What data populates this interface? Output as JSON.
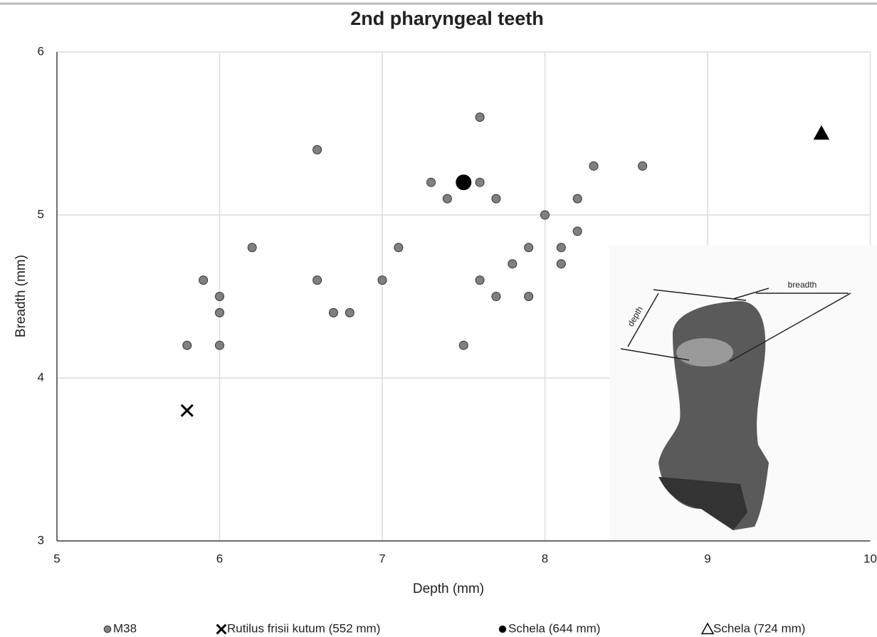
{
  "chart_data": {
    "type": "scatter",
    "title": "2nd pharyngeal teeth",
    "x_label": "Depth (mm)",
    "y_label": "Breadth (mm)",
    "xlim": [
      5,
      10
    ],
    "ylim": [
      3,
      6
    ],
    "xticks": [
      5,
      6,
      7,
      8,
      9,
      10
    ],
    "yticks": [
      3,
      4,
      5,
      6
    ],
    "grid": true,
    "legend": "bottom",
    "annotations": [
      "depth",
      "breadth"
    ],
    "series": [
      {
        "name": "M38",
        "color": "#808080",
        "marker": "circle",
        "x": [
          5.8,
          5.9,
          6,
          6,
          6,
          6.2,
          6.6,
          6.6,
          6.7,
          6.8,
          7,
          7.1,
          7.3,
          7.4,
          7.5,
          7.6,
          7.6,
          7.6,
          7.7,
          7.7,
          7.8,
          7.9,
          7.9,
          8,
          8.1,
          8.1,
          8.2,
          8.2,
          8.3,
          8.6
        ],
        "y": [
          4.2,
          4.6,
          4.5,
          4.4,
          4.2,
          4.8,
          5.4,
          4.6,
          4.4,
          4.4,
          4.6,
          4.8,
          5.2,
          5.1,
          4.2,
          5.6,
          5.2,
          4.6,
          5.1,
          4.5,
          4.7,
          4.8,
          4.5,
          5,
          4.8,
          4.7,
          5.1,
          4.9,
          5.3,
          5.3
        ]
      },
      {
        "name": "Rutilus frisii kutum (552 mm)",
        "color": "#000000",
        "marker": "x",
        "x": [
          5.8
        ],
        "y": [
          3.8
        ]
      },
      {
        "name": "Schela (644 mm)",
        "color": "#000000",
        "marker": "bigcircle",
        "x": [
          7.5
        ],
        "y": [
          5.2
        ]
      },
      {
        "name": "Schela (724 mm)",
        "color": "#000000",
        "marker": "triangle",
        "x": [
          9.7
        ],
        "y": [
          5.5
        ]
      }
    ]
  }
}
